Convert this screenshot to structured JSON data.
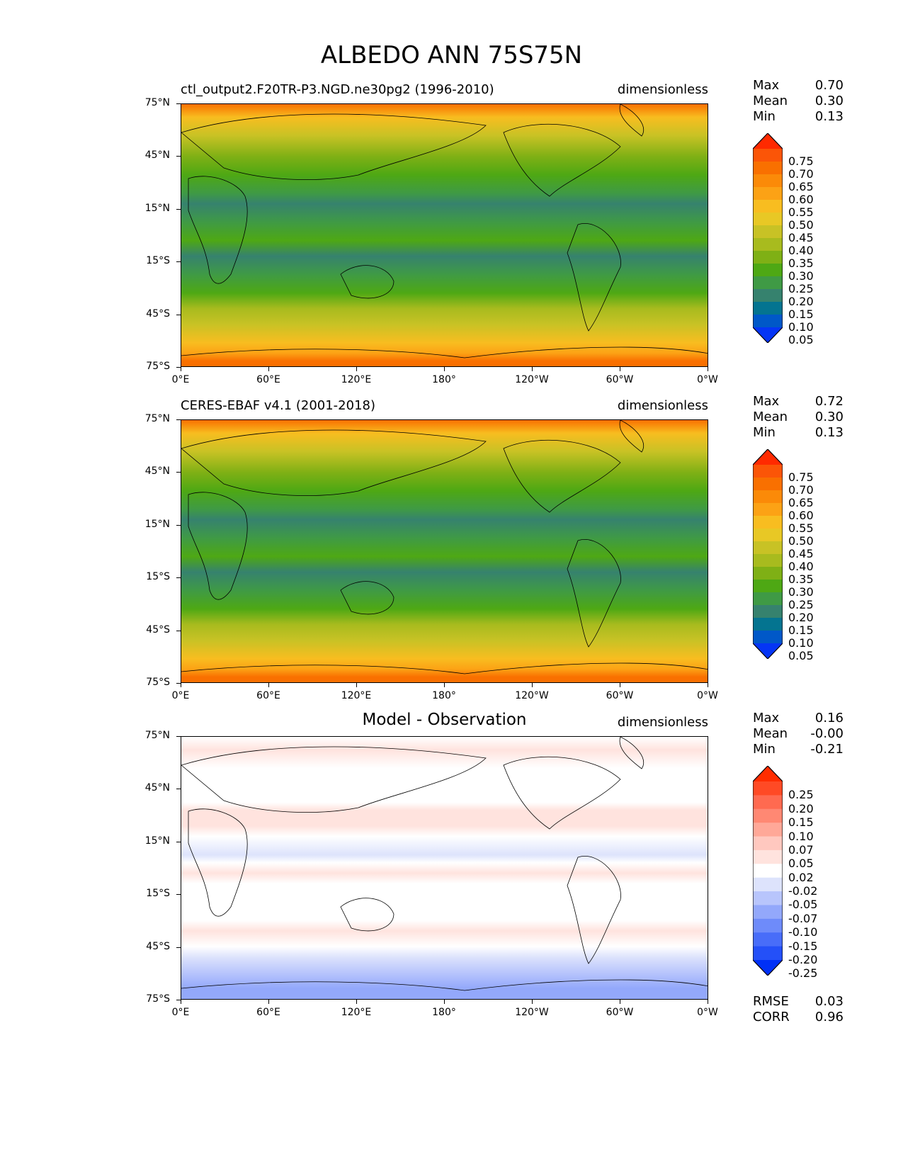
{
  "title": "ALBEDO ANN 75S75N",
  "chart_data": [
    {
      "type": "heatmap",
      "subtitle": "ctl_output2.F20TR-P3.NGD.ne30pg2 (1996-2010)",
      "units": "dimensionless",
      "stats": [
        {
          "label": "Max",
          "value": "0.70"
        },
        {
          "label": "Mean",
          "value": "0.30"
        },
        {
          "label": "Min",
          "value": "0.13"
        }
      ],
      "levels": [
        "0.75",
        "0.70",
        "0.65",
        "0.60",
        "0.55",
        "0.50",
        "0.45",
        "0.40",
        "0.35",
        "0.30",
        "0.25",
        "0.20",
        "0.15",
        "0.10",
        "0.05"
      ],
      "colors": [
        "#ff2a00",
        "#fb5507",
        "#f97000",
        "#fb8a08",
        "#fca215",
        "#f8bd20",
        "#e8c825",
        "#c8c225",
        "#a8bb1e",
        "#7fb015",
        "#4ea814",
        "#3f9a45",
        "#36826e",
        "#047490",
        "#0058c8",
        "#0535f5"
      ]
    },
    {
      "type": "heatmap",
      "subtitle": "CERES-EBAF v4.1 (2001-2018)",
      "units": "dimensionless",
      "stats": [
        {
          "label": "Max",
          "value": "0.72"
        },
        {
          "label": "Mean",
          "value": "0.30"
        },
        {
          "label": "Min",
          "value": "0.13"
        }
      ],
      "levels": [
        "0.75",
        "0.70",
        "0.65",
        "0.60",
        "0.55",
        "0.50",
        "0.45",
        "0.40",
        "0.35",
        "0.30",
        "0.25",
        "0.20",
        "0.15",
        "0.10",
        "0.05"
      ],
      "colors": [
        "#ff2a00",
        "#fb5507",
        "#f97000",
        "#fb8a08",
        "#fca215",
        "#f8bd20",
        "#e8c825",
        "#c8c225",
        "#a8bb1e",
        "#7fb015",
        "#4ea814",
        "#3f9a45",
        "#36826e",
        "#047490",
        "#0058c8",
        "#0535f5"
      ]
    },
    {
      "type": "heatmap",
      "subtitle": "Model - Observation",
      "units": "dimensionless",
      "stats": [
        {
          "label": "Max",
          "value": "0.16"
        },
        {
          "label": "Mean",
          "value": "-0.00"
        },
        {
          "label": "Min",
          "value": "-0.21"
        }
      ],
      "levels": [
        "0.25",
        "0.20",
        "0.15",
        "0.10",
        "0.07",
        "0.05",
        "0.02",
        "-0.02",
        "-0.05",
        "-0.07",
        "-0.10",
        "-0.15",
        "-0.20",
        "-0.25"
      ],
      "colors": [
        "#ff2d00",
        "#ff4a25",
        "#ff6a50",
        "#ff8873",
        "#ffa898",
        "#ffc8bf",
        "#ffe3de",
        "#ffffff",
        "#dde3fc",
        "#b8c5fc",
        "#93a8fb",
        "#6e8bfa",
        "#486df9",
        "#2450f8",
        "#0030f6"
      ],
      "extra": [
        {
          "label": "RMSE",
          "value": "0.03"
        },
        {
          "label": "CORR",
          "value": "0.96"
        }
      ]
    }
  ],
  "xticks": [
    "0°E",
    "60°E",
    "120°E",
    "180°",
    "120°W",
    "60°W",
    "0°W"
  ],
  "yticks": [
    "75°N",
    "45°N",
    "15°N",
    "15°S",
    "45°S",
    "75°S"
  ]
}
